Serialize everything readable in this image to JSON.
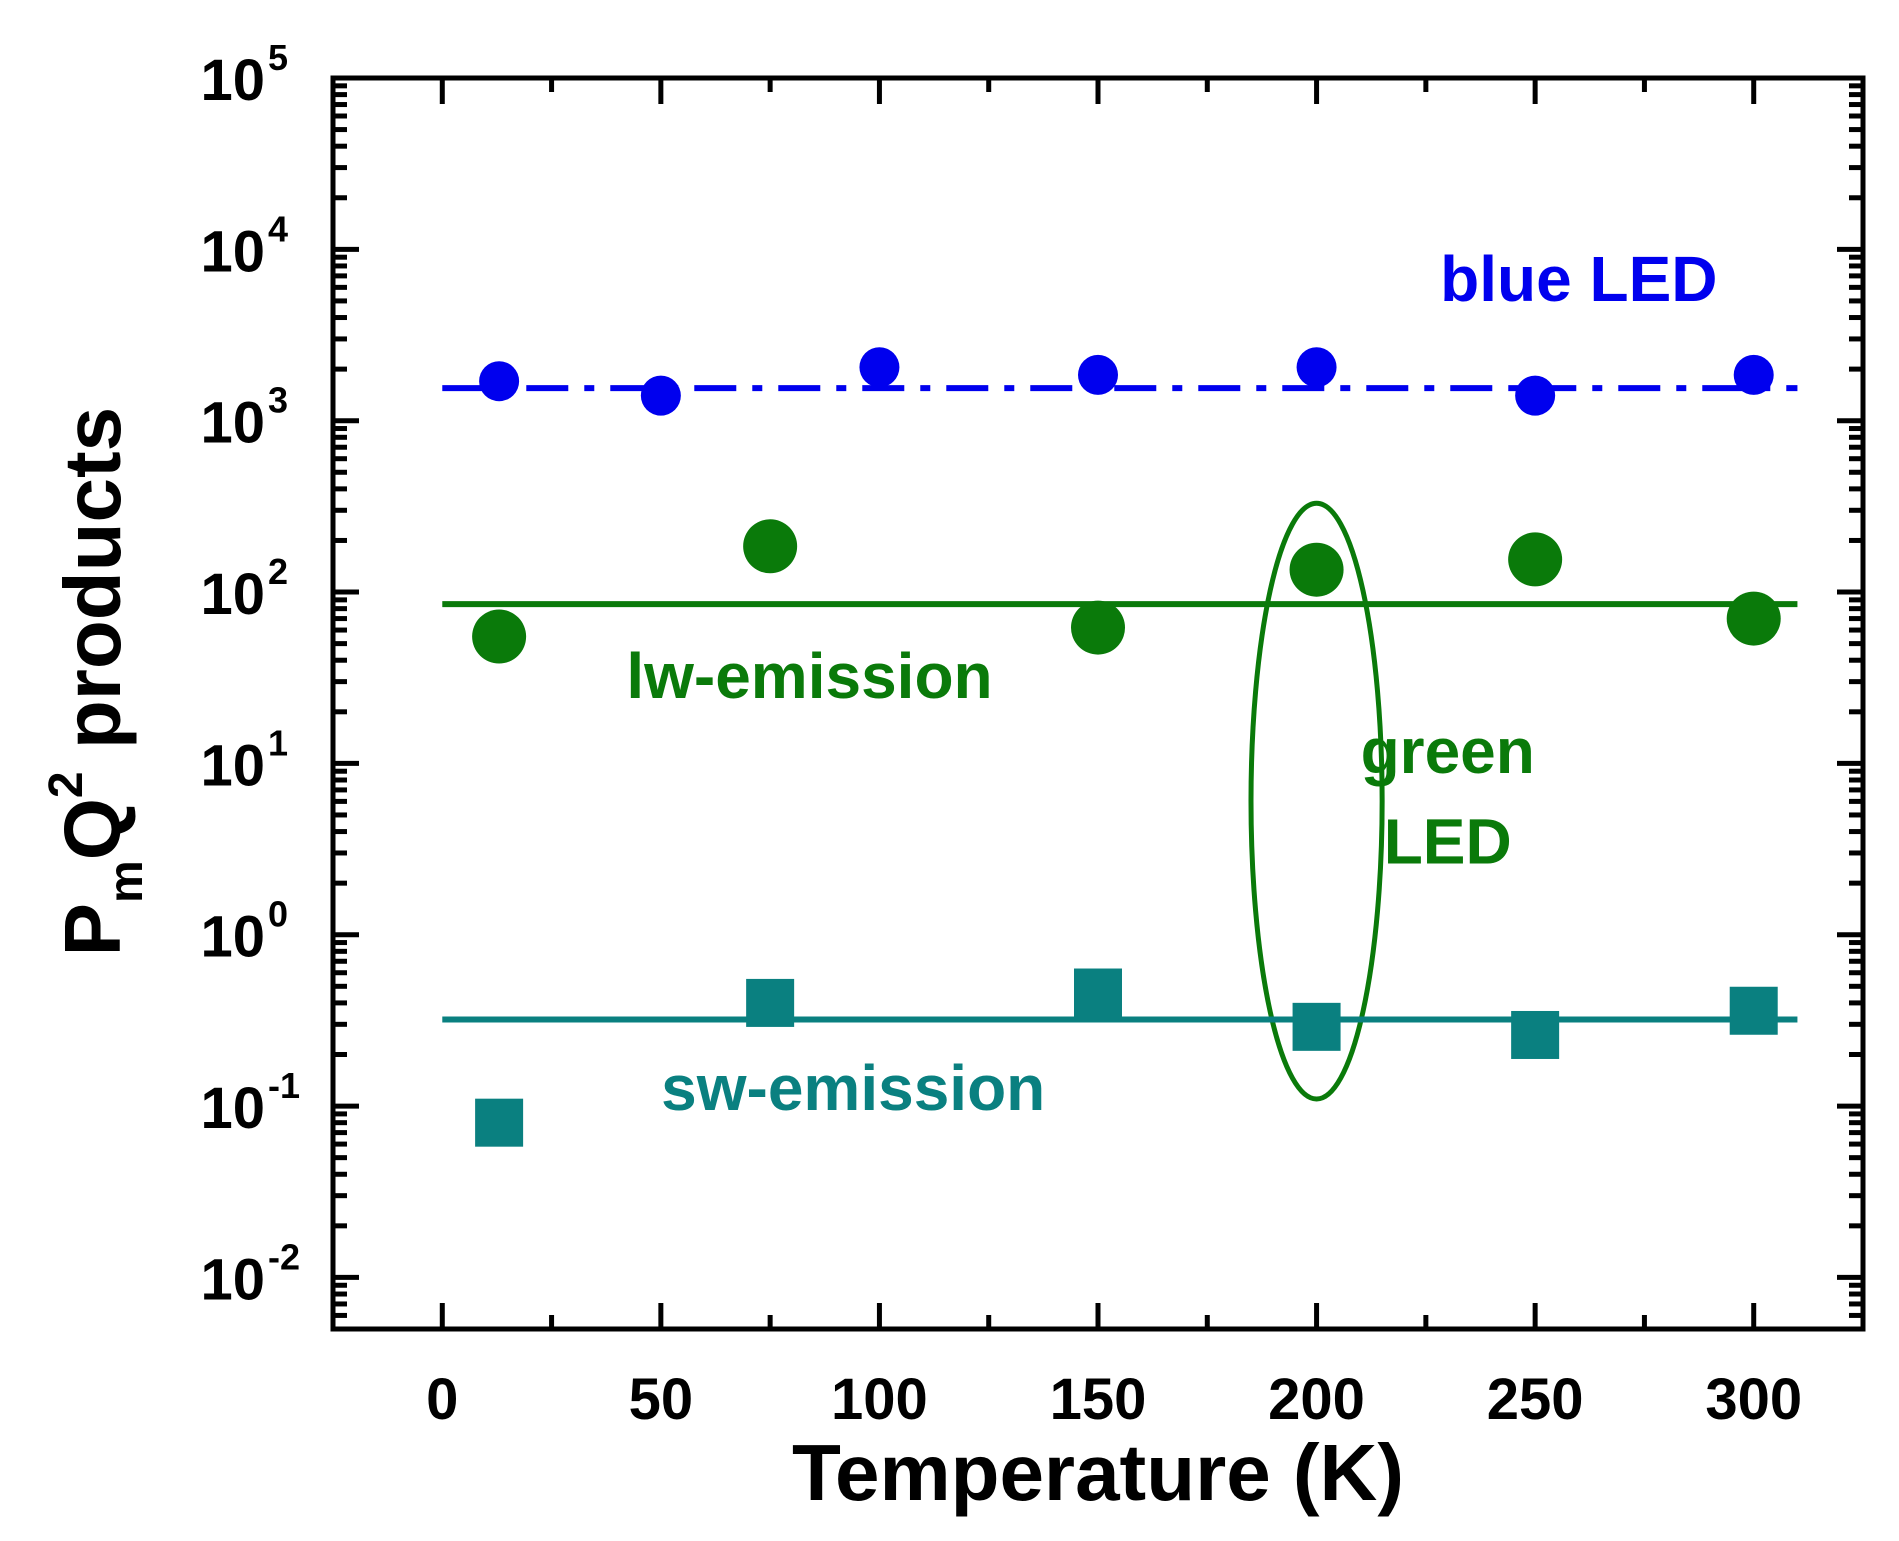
{
  "chart_data": {
    "type": "scatter",
    "title": "",
    "xlabel": "Temperature (K)",
    "ylabel": {
      "P": "P",
      "m": "m",
      "Q": "Q",
      "exp": "2",
      "rest": "products"
    },
    "x_range": [
      -25,
      325
    ],
    "y_scale": "log",
    "y_range": [
      0.005,
      100000
    ],
    "x_ticks": [
      0,
      50,
      100,
      150,
      200,
      250,
      300
    ],
    "x_tick_labels": [
      "0",
      "50",
      "100",
      "150",
      "200",
      "250",
      "300"
    ],
    "y_ticks": [
      {
        "value": 0.01,
        "base": "10",
        "exp": "-2"
      },
      {
        "value": 0.1,
        "base": "10",
        "exp": "-1"
      },
      {
        "value": 1,
        "base": "10",
        "exp": "0"
      },
      {
        "value": 10,
        "base": "10",
        "exp": "1"
      },
      {
        "value": 100,
        "base": "10",
        "exp": "2"
      },
      {
        "value": 1000,
        "base": "10",
        "exp": "3"
      },
      {
        "value": 10000,
        "base": "10",
        "exp": "4"
      },
      {
        "value": 100000,
        "base": "10",
        "exp": "5"
      }
    ],
    "series": [
      {
        "name": "blue LED",
        "color": "#0000ee",
        "marker": "circle",
        "x": [
          13,
          50,
          100,
          150,
          200,
          250,
          300
        ],
        "y": [
          1700,
          1400,
          2050,
          1850,
          2050,
          1400,
          1850
        ],
        "fit": {
          "x": [
            0,
            310
          ],
          "y": 1550,
          "style": "dash-dot"
        }
      },
      {
        "name": "lw-emission",
        "color": "#0a7a0a",
        "marker": "circle",
        "x": [
          13,
          75,
          150,
          200,
          250,
          300
        ],
        "y": [
          55,
          185,
          62,
          135,
          155,
          70
        ],
        "fit": {
          "x": [
            0,
            310
          ],
          "y": 85,
          "style": "solid"
        }
      },
      {
        "name": "sw-emission",
        "color": "#0a8080",
        "marker": "square",
        "x": [
          13,
          75,
          150,
          200,
          250,
          300
        ],
        "y": [
          0.08,
          0.4,
          0.46,
          0.29,
          0.26,
          0.36
        ],
        "fit": {
          "x": [
            0,
            310
          ],
          "y": 0.32,
          "style": "solid"
        }
      }
    ],
    "annotations": [
      {
        "text": "blue LED",
        "color": "#0000ee",
        "x": 260,
        "y": 5000
      },
      {
        "text": "lw-emission",
        "color": "#0a7a0a",
        "x": 84,
        "y": 24
      },
      {
        "text": "green",
        "color": "#0a7a0a",
        "x": 230,
        "y": 8.8
      },
      {
        "text": "LED",
        "color": "#0a7a0a",
        "x": 230,
        "y": 2.6
      },
      {
        "text": "sw-emission",
        "color": "#0a8080",
        "x": 94,
        "y": 0.095
      }
    ],
    "highlight": {
      "shape": "ellipse",
      "color": "#0a7a0a",
      "x_center": 200,
      "x_halfwidth": 15,
      "y_min": 0.11,
      "y_max": 330,
      "label": "green LED"
    }
  }
}
